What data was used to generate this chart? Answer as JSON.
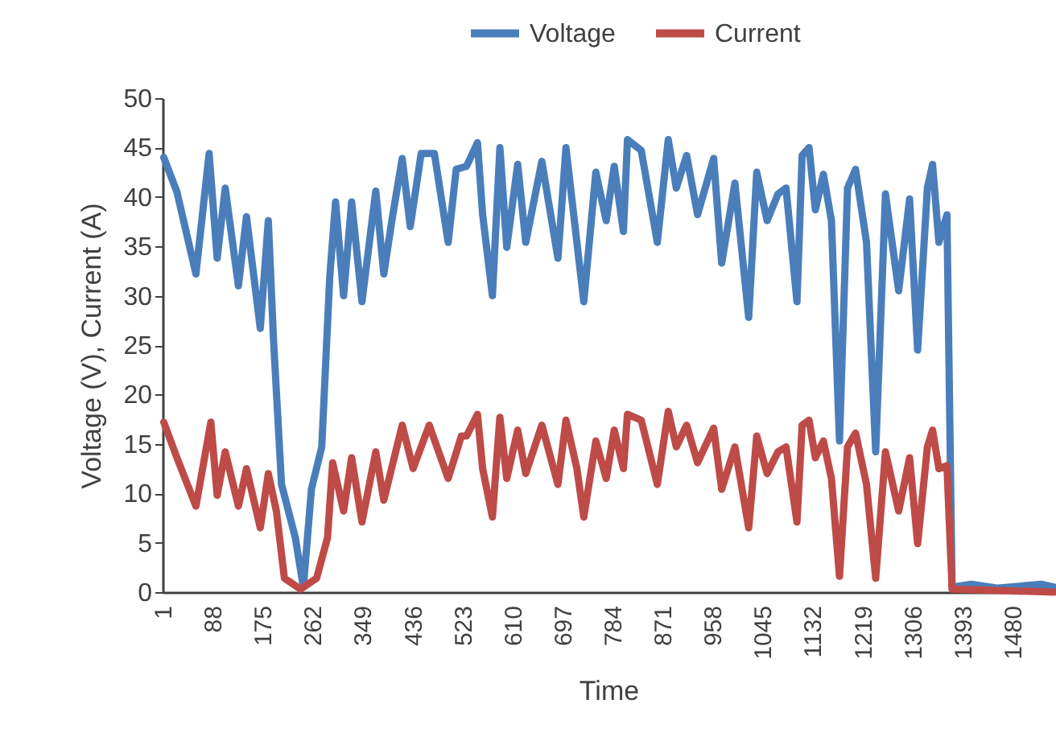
{
  "chart_data": {
    "type": "line",
    "xlabel": "Time",
    "ylabel": "Voltage (V), Current (A)",
    "xlim": [
      1,
      1553
    ],
    "xticks": [
      1,
      88,
      175,
      262,
      349,
      436,
      523,
      610,
      697,
      784,
      871,
      958,
      1045,
      1132,
      1219,
      1306,
      1393,
      1480
    ],
    "ylim": [
      0,
      50
    ],
    "yticks": [
      0,
      5,
      10,
      15,
      20,
      25,
      30,
      35,
      40,
      45,
      50
    ],
    "grid": false,
    "legend": "top right",
    "marker": "none",
    "line_style": "solid",
    "series": [
      {
        "name": "Voltage",
        "color": "#4a7ebb",
        "x": [
          3,
          26,
          59,
          82,
          96,
          110,
          133,
          147,
          171,
          185,
          194,
          208,
          232,
          246,
          260,
          278,
          292,
          302,
          316,
          330,
          348,
          372,
          386,
          400,
          418,
          432,
          451,
          474,
          498,
          512,
          530,
          549,
          558,
          575,
          588,
          600,
          619,
          633,
          661,
          689,
          703,
          722,
          734,
          755,
          773,
          787,
          803,
          810,
          834,
          862,
          881,
          895,
          913,
          932,
          960,
          974,
          997,
          1021,
          1035,
          1053,
          1072,
          1086,
          1105,
          1114,
          1126,
          1137,
          1151,
          1165,
          1179,
          1193,
          1207,
          1226,
          1242,
          1259,
          1282,
          1301,
          1315,
          1332,
          1341,
          1352,
          1366,
          1375,
          1408,
          1455,
          1530,
          1553
        ],
        "values": [
          44,
          40.5,
          32.2,
          44.4,
          33.8,
          40.9,
          31,
          38,
          26.7,
          37.6,
          25.6,
          10.9,
          5.5,
          0.5,
          10.4,
          14.7,
          32,
          39.5,
          30,
          39.5,
          29.4,
          40.6,
          32.2,
          37.6,
          43.9,
          37,
          44.4,
          44.4,
          35.4,
          42.8,
          43.1,
          45.5,
          38.2,
          30,
          45,
          34.9,
          43.3,
          35.4,
          43.6,
          33.8,
          45,
          35.4,
          29.4,
          42.5,
          37.6,
          43.1,
          36.5,
          45.8,
          44.7,
          35.4,
          45.8,
          40.9,
          44.2,
          38.2,
          43.9,
          33.3,
          41.4,
          27.8,
          42.5,
          37.6,
          40.3,
          40.9,
          29.4,
          44.2,
          45,
          38.7,
          42.3,
          37.6,
          15.3,
          40.9,
          42.8,
          35.4,
          14.2,
          40.3,
          30.5,
          39.8,
          24.5,
          40.9,
          43.3,
          35.4,
          38.2,
          0.5,
          0.8,
          0.4,
          0.8,
          0.5
        ]
      },
      {
        "name": "Current",
        "color": "#be4b48",
        "x": [
          3,
          26,
          59,
          85,
          96,
          110,
          133,
          147,
          171,
          185,
          199,
          213,
          241,
          269,
          288,
          297,
          316,
          330,
          348,
          372,
          386,
          418,
          437,
          465,
          498,
          521,
          530,
          549,
          558,
          575,
          588,
          600,
          619,
          633,
          661,
          689,
          703,
          722,
          734,
          755,
          773,
          787,
          803,
          810,
          834,
          862,
          881,
          895,
          913,
          932,
          960,
          974,
          997,
          1021,
          1035,
          1053,
          1072,
          1086,
          1105,
          1114,
          1126,
          1137,
          1151,
          1165,
          1179,
          1193,
          1207,
          1226,
          1242,
          1259,
          1282,
          1301,
          1315,
          1332,
          1341,
          1352,
          1366,
          1375,
          1553
        ],
        "values": [
          17.2,
          13.6,
          8.7,
          17.2,
          9.8,
          14.2,
          8.7,
          12.5,
          6.5,
          12,
          8.2,
          1.4,
          0.3,
          1.4,
          5.5,
          13.1,
          8.2,
          13.6,
          7.1,
          14.2,
          9.3,
          16.9,
          12.5,
          16.9,
          11.5,
          15.8,
          15.8,
          18,
          12.5,
          7.6,
          17.7,
          11.5,
          16.4,
          12,
          16.9,
          10.9,
          17.4,
          12.5,
          7.6,
          15.3,
          11.5,
          16.4,
          12.5,
          18,
          17.4,
          10.9,
          18.3,
          14.7,
          16.9,
          13.1,
          16.6,
          10.4,
          14.7,
          6.5,
          15.8,
          12,
          14.2,
          14.7,
          7.1,
          16.9,
          17.4,
          13.6,
          15.3,
          11.5,
          1.6,
          14.7,
          16.1,
          10.9,
          1.4,
          14.2,
          8.2,
          13.6,
          4.9,
          14.7,
          16.4,
          12.5,
          12.8,
          0.3,
          0
        ]
      }
    ]
  }
}
